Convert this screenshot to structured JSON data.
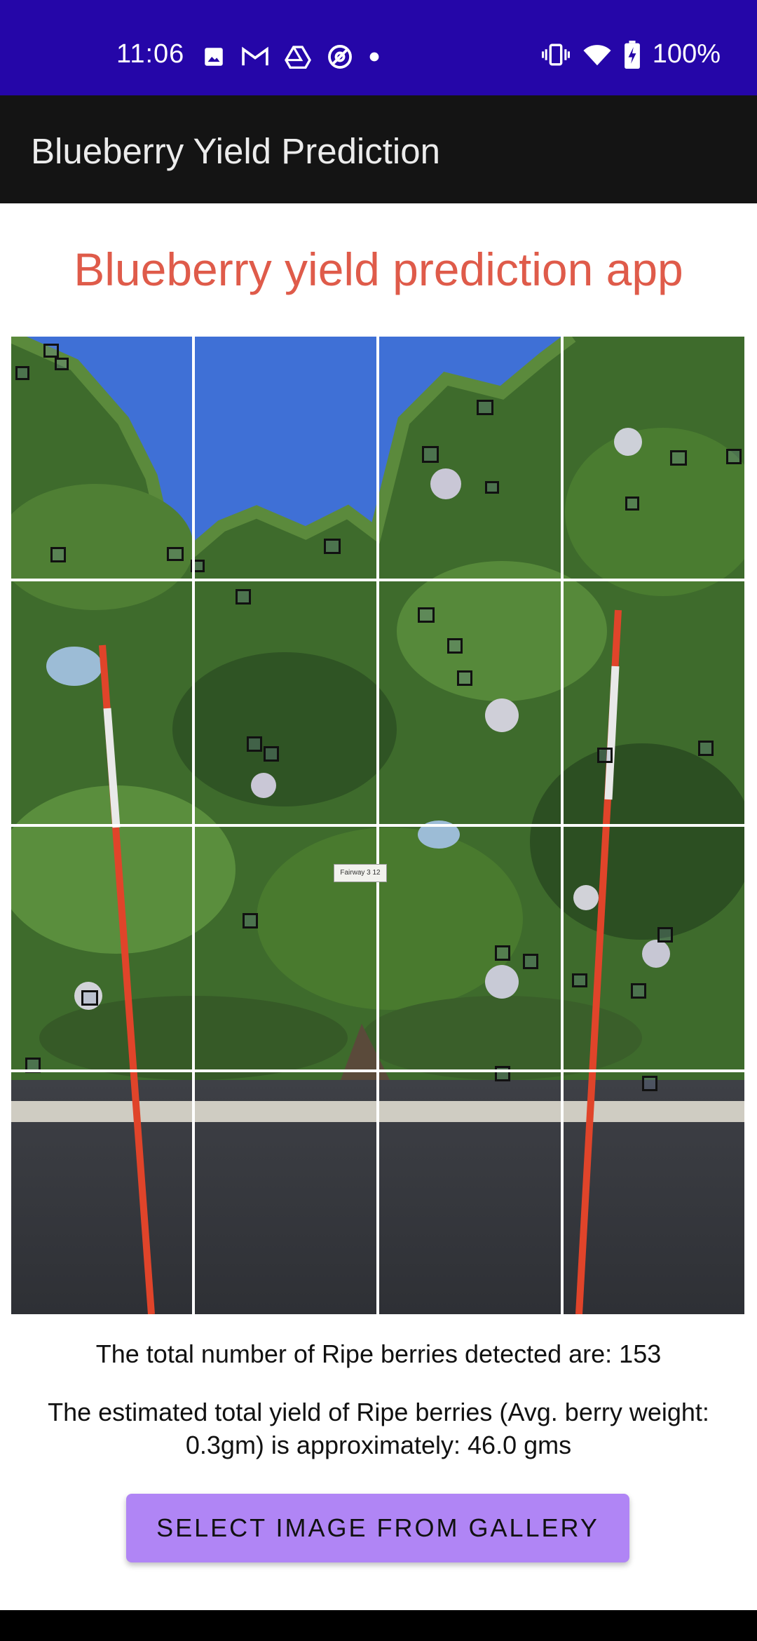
{
  "status_bar": {
    "time": "11:06",
    "battery": "100%",
    "icons": [
      "image-icon",
      "gmail-icon",
      "drive-icon",
      "at-icon",
      "dot-icon",
      "vibrate-icon",
      "wifi-icon",
      "battery-charging-icon"
    ],
    "background": "#2506a8"
  },
  "app_bar": {
    "title": "Blueberry Yield Prediction",
    "background": "#141414"
  },
  "main": {
    "heading": "Blueberry yield prediction app",
    "heading_color": "#df5b4a",
    "image_tag": "Fairway 3 12",
    "ripe_count_text": "The total number of Ripe berries detected are: 153",
    "yield_text": "The estimated total yield of Ripe berries (Avg. berry weight: 0.3gm) is approximately: 46.0 gms",
    "select_button": "SELECT IMAGE FROM GALLERY",
    "button_color": "#b085f5"
  }
}
